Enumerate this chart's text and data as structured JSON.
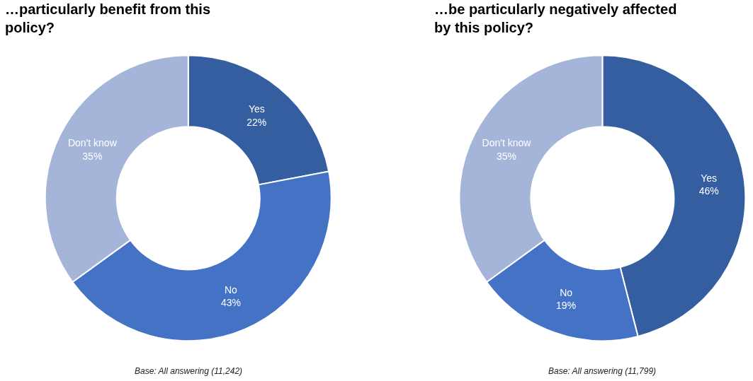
{
  "chart_data": [
    {
      "type": "donut",
      "title": "…particularly benefit from this policy?",
      "categories": [
        "Yes",
        "No",
        "Don't know"
      ],
      "values": [
        22,
        43,
        35
      ],
      "value_labels": [
        "22%",
        "43%",
        "35%"
      ],
      "colors": [
        "#345ea0",
        "#4472c4",
        "#a5b4d9"
      ],
      "legend": false,
      "annotations": [
        "Base: All answering (11,242)"
      ]
    },
    {
      "type": "donut",
      "title": "…be particularly negatively affected by this policy?",
      "categories": [
        "Yes",
        "No",
        "Don't know"
      ],
      "values": [
        46,
        19,
        35
      ],
      "value_labels": [
        "46%",
        "19%",
        "35%"
      ],
      "colors": [
        "#345ea0",
        "#4472c4",
        "#a5b4d9"
      ],
      "legend": false,
      "annotations": [
        "Base: All answering (11,799)"
      ]
    }
  ]
}
